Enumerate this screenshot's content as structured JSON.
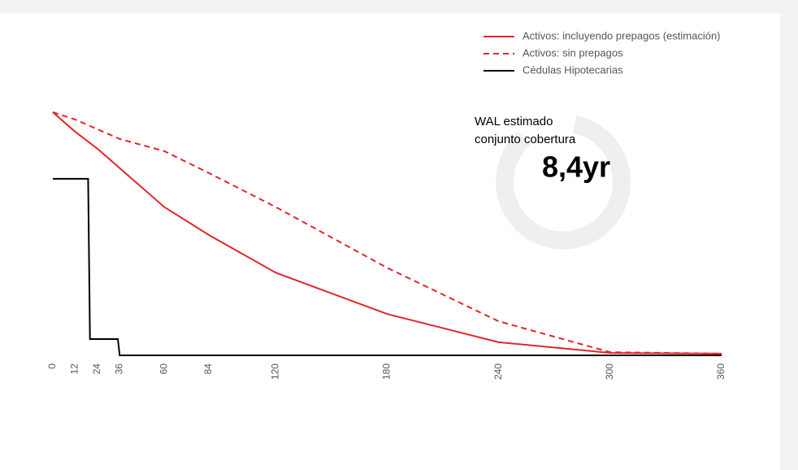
{
  "chart_data": {
    "type": "line",
    "xlim": [
      0,
      360
    ],
    "xticks": [
      0,
      12,
      24,
      36,
      60,
      84,
      120,
      180,
      240,
      300,
      360
    ],
    "ylim": [
      0,
      100
    ],
    "legend": "top-right",
    "series": [
      {
        "name": "Activos: incluyendo prepagos (estimación)",
        "color": "#e0262c",
        "dash": false,
        "x": [
          0,
          12,
          24,
          36,
          60,
          84,
          120,
          180,
          240,
          300,
          360
        ],
        "values": [
          100,
          92,
          85,
          77,
          61,
          49.5,
          34,
          17,
          5.4,
          1,
          0.7
        ]
      },
      {
        "name": "Activos: sin prepagos",
        "color": "#e0262c",
        "dash": true,
        "x": [
          0,
          12,
          24,
          36,
          60,
          84,
          120,
          180,
          240,
          300,
          360
        ],
        "values": [
          100,
          97,
          93,
          89,
          84,
          75,
          61,
          36,
          14,
          1.3,
          0.7
        ]
      },
      {
        "name": "Cédulas Hipotecarias",
        "color": "#000000",
        "dash": false,
        "x": [
          0,
          19,
          20,
          35,
          36,
          360
        ],
        "values": [
          72.6,
          72.6,
          6.7,
          6.7,
          0,
          0
        ]
      }
    ],
    "annotation": {
      "lines": [
        "WAL estimado",
        "conjunto cobertura"
      ],
      "highlight": "8,4yr"
    }
  }
}
